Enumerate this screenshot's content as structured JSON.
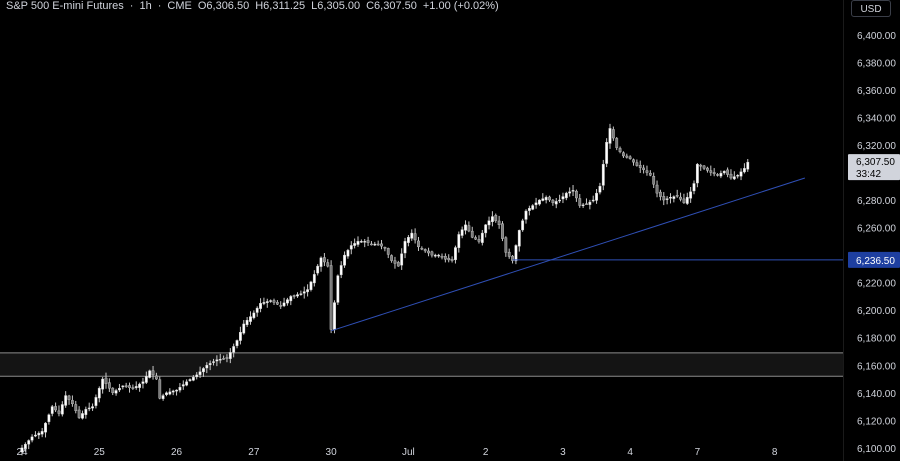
{
  "header": {
    "symbol": "S&P 500 E-mini Futures",
    "sep1": "·",
    "interval": "1h",
    "sep2": "·",
    "exchange": "CME",
    "open": "O6,306.50",
    "high": "H6,311.25",
    "low": "L6,305.00",
    "close": "C6,307.50",
    "change": "+1.00 (+0.02%)"
  },
  "currency_button": "USD",
  "colors": {
    "background": "#000000",
    "candle": "#c9c9c9",
    "trendline": "#2f4fb5",
    "zone_border": "#8c8c8c",
    "zone_fill": "#141414",
    "axis_text": "#d1d4dc",
    "price_badge": "#d1d4dc",
    "level_badge": "#1e3fa0"
  },
  "chart_data": {
    "type": "candlestick",
    "interval": "1h",
    "y_ticks": [
      "6,400.00",
      "6,380.00",
      "6,360.00",
      "6,340.00",
      "6,320.00",
      "6,300.00",
      "6,280.00",
      "6,260.00",
      "6,240.00",
      "6,220.00",
      "6,200.00",
      "6,180.00",
      "6,160.00",
      "6,140.00",
      "6,120.00",
      "6,100.00"
    ],
    "ylim": [
      6097,
      6418
    ],
    "x_ticks": [
      {
        "label": "24",
        "idx": 0
      },
      {
        "label": "25",
        "idx": 23
      },
      {
        "label": "26",
        "idx": 46
      },
      {
        "label": "27",
        "idx": 69
      },
      {
        "label": "30",
        "idx": 92
      },
      {
        "label": "Jul",
        "idx": 115
      },
      {
        "label": "2",
        "idx": 138
      },
      {
        "label": "3",
        "idx": 161
      },
      {
        "label": "4",
        "idx": 181
      },
      {
        "label": "7",
        "idx": 201
      },
      {
        "label": "8",
        "idx": 224
      }
    ],
    "last_price": {
      "value": 6307.5,
      "label": "6,307.50",
      "countdown": "33:42"
    },
    "horizontal_level": {
      "value": 6236.5,
      "label": "6,236.50"
    },
    "support_zone": {
      "top": 6169,
      "bottom": 6152
    },
    "trendlines": [
      {
        "from": {
          "idx": 92,
          "price": 6185
        },
        "to": {
          "idx": 233,
          "price": 6296
        }
      }
    ],
    "anchors": [
      [
        0,
        6100
      ],
      [
        3,
        6108
      ],
      [
        6,
        6112
      ],
      [
        9,
        6130
      ],
      [
        11,
        6125
      ],
      [
        13,
        6138
      ],
      [
        15,
        6132
      ],
      [
        17,
        6122
      ],
      [
        19,
        6128
      ],
      [
        21,
        6130
      ],
      [
        24,
        6150
      ],
      [
        27,
        6140
      ],
      [
        30,
        6145
      ],
      [
        33,
        6143
      ],
      [
        36,
        6148
      ],
      [
        38,
        6156
      ],
      [
        40,
        6150
      ],
      [
        41,
        6136
      ],
      [
        43,
        6140
      ],
      [
        46,
        6142
      ],
      [
        49,
        6148
      ],
      [
        52,
        6153
      ],
      [
        55,
        6160
      ],
      [
        58,
        6164
      ],
      [
        61,
        6165
      ],
      [
        64,
        6178
      ],
      [
        66,
        6190
      ],
      [
        69,
        6198
      ],
      [
        71,
        6205
      ],
      [
        74,
        6207
      ],
      [
        77,
        6203
      ],
      [
        80,
        6210
      ],
      [
        83,
        6212
      ],
      [
        85,
        6215
      ],
      [
        87,
        6226
      ],
      [
        89,
        6238
      ],
      [
        91,
        6232
      ],
      [
        92,
        6186
      ],
      [
        94,
        6225
      ],
      [
        96,
        6240
      ],
      [
        98,
        6247
      ],
      [
        100,
        6250
      ],
      [
        102,
        6250
      ],
      [
        104,
        6248
      ],
      [
        106,
        6248
      ],
      [
        108,
        6245
      ],
      [
        110,
        6236
      ],
      [
        112,
        6232
      ],
      [
        114,
        6250
      ],
      [
        116,
        6256
      ],
      [
        118,
        6246
      ],
      [
        120,
        6243
      ],
      [
        122,
        6240
      ],
      [
        124,
        6240
      ],
      [
        126,
        6237
      ],
      [
        128,
        6236
      ],
      [
        130,
        6255
      ],
      [
        132,
        6262
      ],
      [
        134,
        6253
      ],
      [
        136,
        6250
      ],
      [
        138,
        6262
      ],
      [
        140,
        6268
      ],
      [
        142,
        6262
      ],
      [
        144,
        6242
      ],
      [
        146,
        6236
      ],
      [
        148,
        6258
      ],
      [
        150,
        6272
      ],
      [
        152,
        6276
      ],
      [
        154,
        6280
      ],
      [
        156,
        6282
      ],
      [
        158,
        6278
      ],
      [
        160,
        6280
      ],
      [
        162,
        6285
      ],
      [
        164,
        6287
      ],
      [
        166,
        6276
      ],
      [
        168,
        6277
      ],
      [
        170,
        6280
      ],
      [
        172,
        6290
      ],
      [
        174,
        6322
      ],
      [
        175,
        6332
      ],
      [
        177,
        6318
      ],
      [
        179,
        6312
      ],
      [
        181,
        6310
      ],
      [
        183,
        6305
      ],
      [
        185,
        6302
      ],
      [
        187,
        6298
      ],
      [
        189,
        6285
      ],
      [
        191,
        6280
      ],
      [
        193,
        6282
      ],
      [
        195,
        6283
      ],
      [
        197,
        6278
      ],
      [
        199,
        6286
      ],
      [
        200,
        6292
      ],
      [
        201,
        6306
      ],
      [
        203,
        6303
      ],
      [
        205,
        6300
      ],
      [
        207,
        6298
      ],
      [
        209,
        6301
      ],
      [
        211,
        6296
      ],
      [
        213,
        6298
      ],
      [
        215,
        6303
      ],
      [
        216,
        6307.5
      ]
    ]
  }
}
